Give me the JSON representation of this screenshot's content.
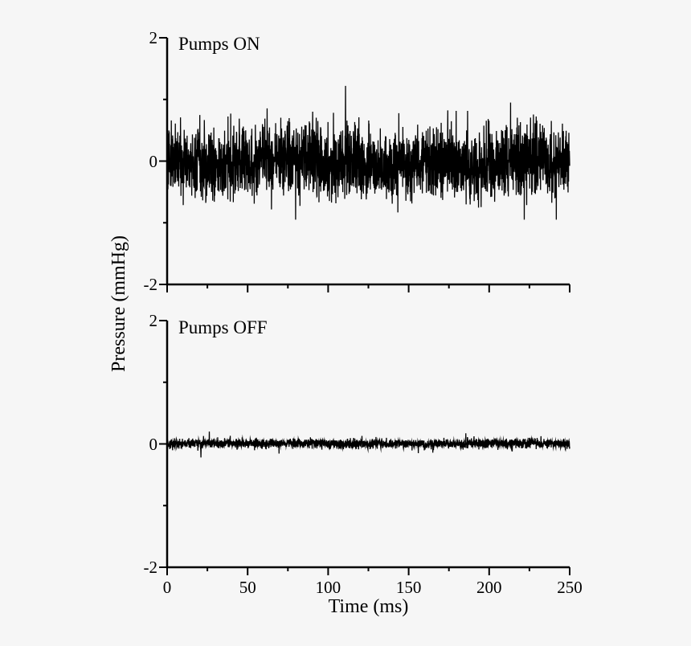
{
  "figure": {
    "background": "#f6f6f6",
    "ink": "#000000",
    "xlabel": "Time (ms)",
    "ylabel": "Pressure (mmHg)"
  },
  "chart_data": [
    {
      "type": "line",
      "title": "Pumps ON",
      "xlabel": "Time (ms)",
      "ylabel": "Pressure (mmHg)",
      "xlim": [
        0,
        250
      ],
      "ylim": [
        -2,
        2
      ],
      "x_major_ticks": [
        0,
        50,
        100,
        150,
        200,
        250
      ],
      "x_minor_ticks": [
        25,
        75,
        125,
        175,
        225
      ],
      "x_tick_labels": [],
      "y_major_ticks": [
        2,
        0,
        -2
      ],
      "y_minor_ticks": [
        1,
        -1
      ],
      "y_tick_labels": [
        "2",
        "0",
        "-2"
      ],
      "grid": false,
      "legend": "none",
      "series": {
        "name": "pressure-pumps-on",
        "kind": "band-limited-random-noise",
        "mean": 0,
        "std": 0.28,
        "typical_band": [
          -0.6,
          0.6
        ],
        "clip": 0.95,
        "wander": 0.1,
        "tail_prob": 0.02,
        "tail_gain": 1.5,
        "samples_per_ms": 10,
        "seed": 20,
        "spikes": [
          {
            "x": 110.8,
            "y": 1.22
          }
        ]
      }
    },
    {
      "type": "line",
      "title": "Pumps OFF",
      "xlabel": "Time (ms)",
      "ylabel": "Pressure (mmHg)",
      "xlim": [
        0,
        250
      ],
      "ylim": [
        -2,
        2
      ],
      "x_major_ticks": [
        0,
        50,
        100,
        150,
        200,
        250
      ],
      "x_minor_ticks": [
        25,
        75,
        125,
        175,
        225
      ],
      "x_tick_labels": [
        "0",
        "50",
        "100",
        "150",
        "200",
        "250"
      ],
      "y_major_ticks": [
        2,
        0,
        -2
      ],
      "y_minor_ticks": [
        1,
        -1
      ],
      "y_tick_labels": [
        "2",
        "0",
        "-2"
      ],
      "grid": false,
      "legend": "none",
      "series": {
        "name": "pressure-pumps-off",
        "kind": "band-limited-random-noise",
        "mean": 0,
        "std": 0.035,
        "typical_band": [
          -0.08,
          0.08
        ],
        "clip": 0.2,
        "wander": 0.012,
        "tail_prob": 0.03,
        "tail_gain": 2.2,
        "samples_per_ms": 10,
        "seed": 77,
        "spikes": [
          {
            "x": 21,
            "y": -0.22
          },
          {
            "x": 121,
            "y": 0.13
          }
        ]
      }
    }
  ]
}
